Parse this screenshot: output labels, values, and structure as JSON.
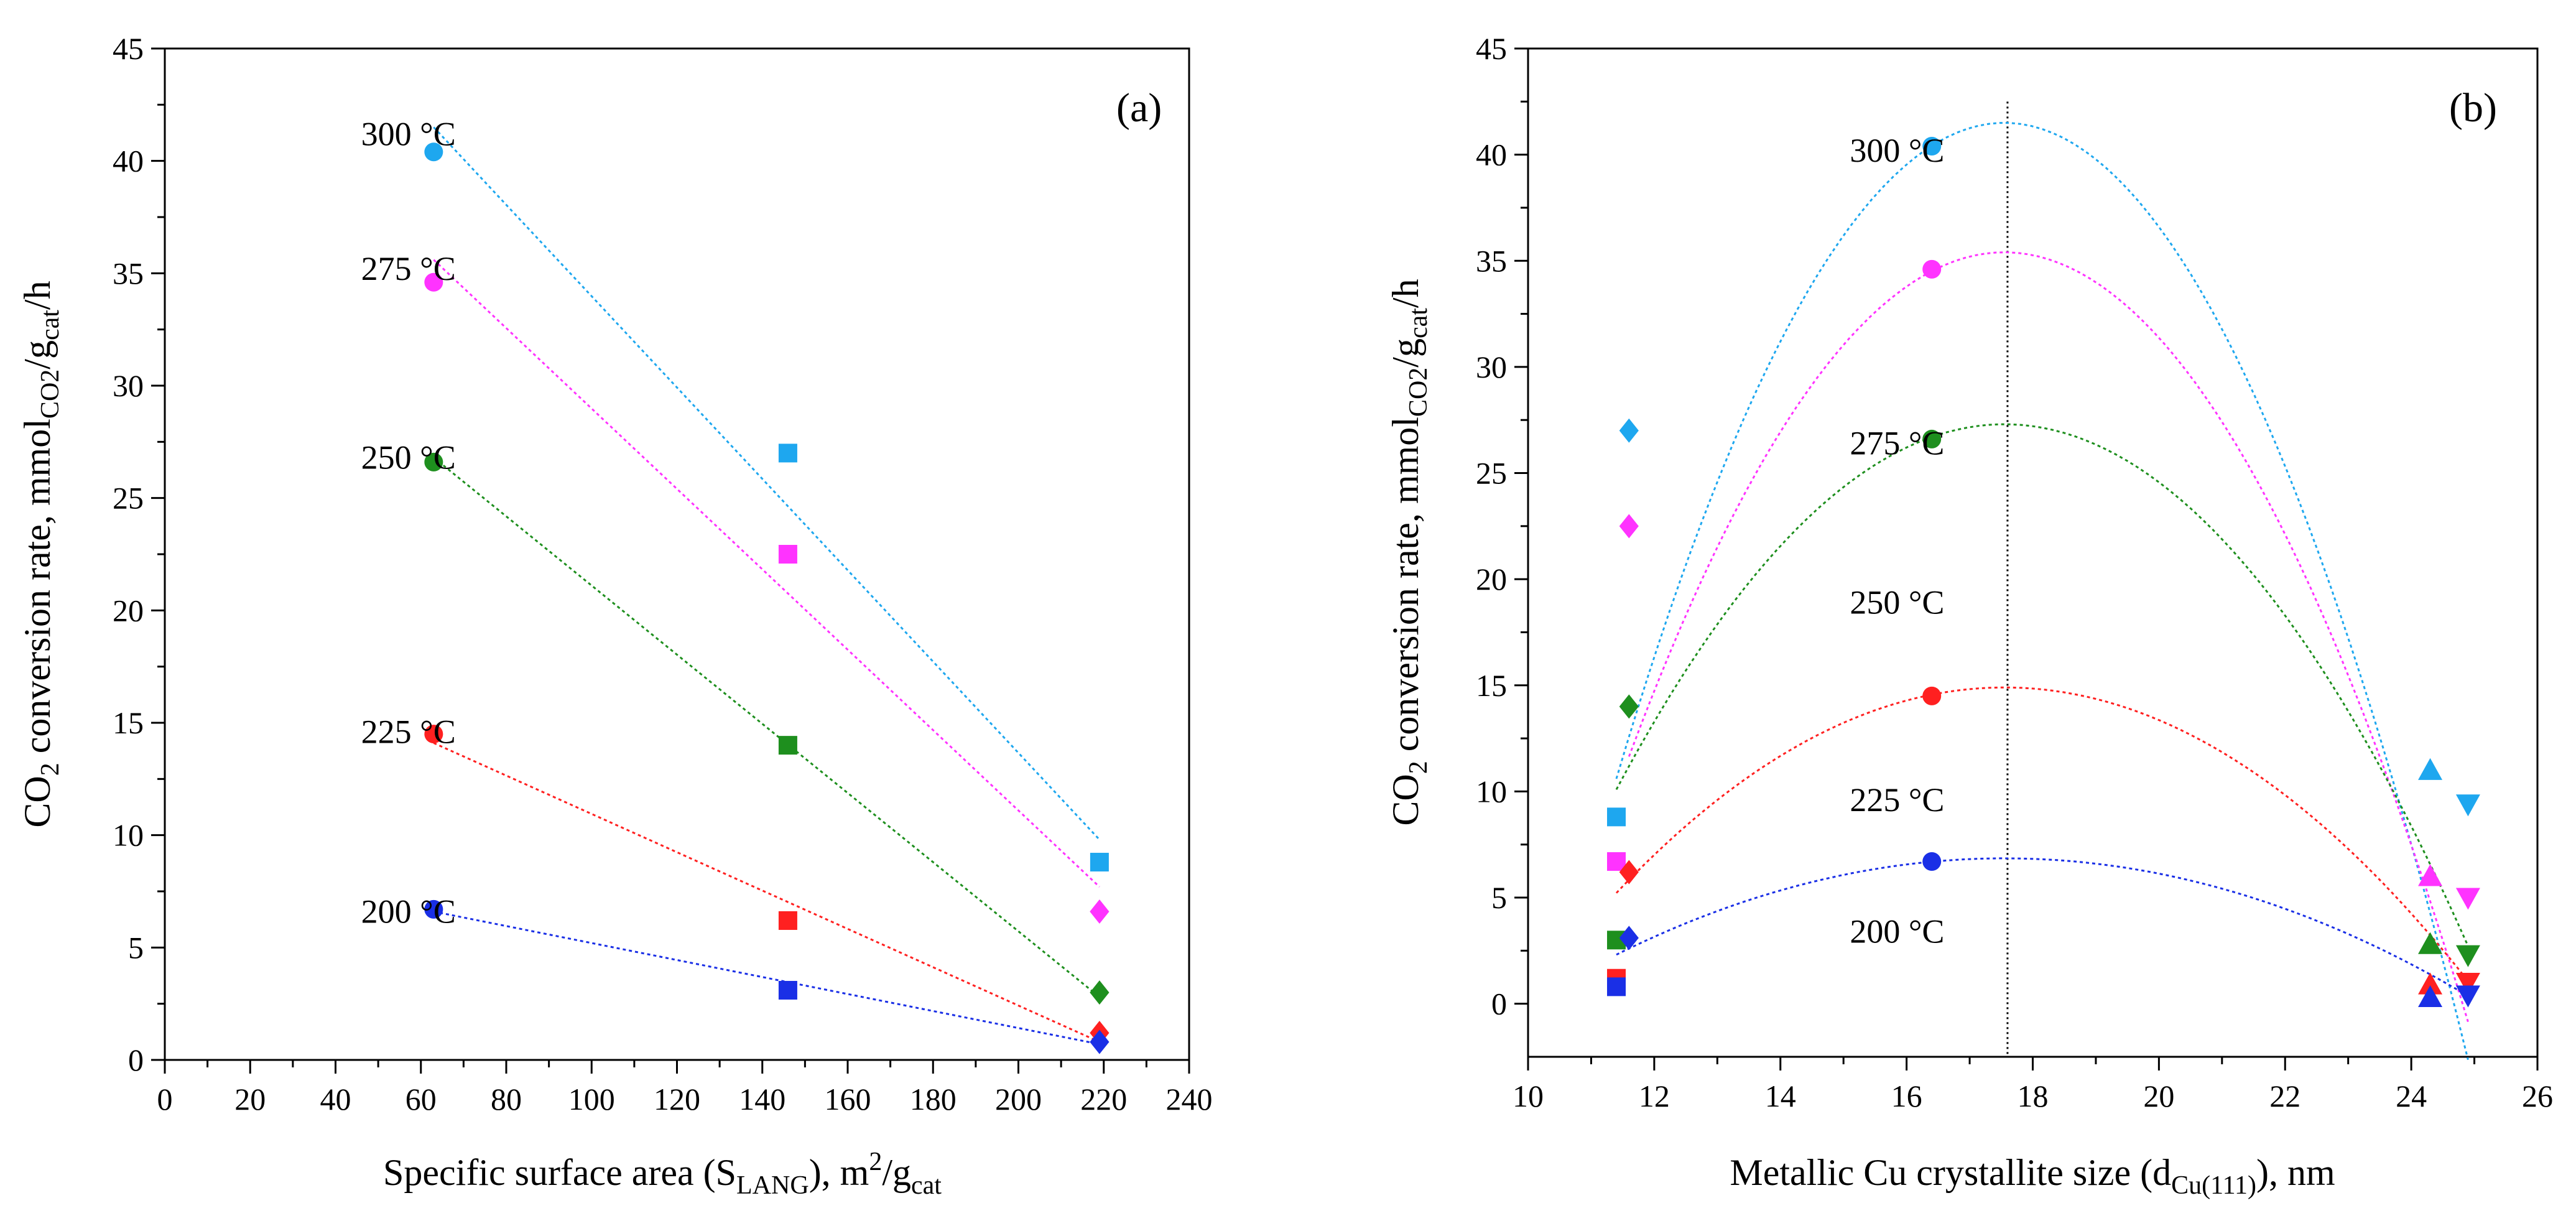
{
  "chart_data": [
    {
      "id": "a",
      "type": "scatter",
      "panel_label": "(a)",
      "xlim": [
        0,
        240
      ],
      "ylim": [
        0,
        45
      ],
      "xticks": [
        0,
        20,
        40,
        60,
        80,
        100,
        120,
        140,
        160,
        180,
        200,
        220,
        240
      ],
      "yticks": [
        0,
        5,
        10,
        15,
        20,
        25,
        30,
        35,
        40,
        45
      ],
      "xlabel": {
        "main": "Specific surface area (S",
        "sub": "LANG",
        "mid": "), m",
        "sup": "2",
        "slash": "/g",
        "sub2": "cat"
      },
      "ylabel": {
        "p1": "CO",
        "s1": "2",
        "p2": " conversion rate, mmol",
        "s2": "CO2",
        "p3": "/g",
        "s3": "cat",
        "p4": "/h"
      },
      "series": [
        {
          "name": "300 °C",
          "color": "#1ea7ef",
          "label": "300 °C",
          "label_at": [
            46,
            41.2
          ],
          "points": [
            [
              63,
              40.4,
              "circle"
            ],
            [
              146,
              27.0,
              "square"
            ],
            [
              219,
              8.8,
              "square"
            ]
          ],
          "fit": {
            "kind": "line",
            "points": [
              [
                63,
                41.5
              ],
              [
                219,
                9.8
              ]
            ]
          }
        },
        {
          "name": "275 °C",
          "color": "#ff33ff",
          "label": "275 °C",
          "label_at": [
            46,
            35.2
          ],
          "points": [
            [
              63,
              34.6,
              "circle"
            ],
            [
              146,
              22.5,
              "square"
            ],
            [
              219,
              6.6,
              "diamond"
            ]
          ],
          "fit": {
            "kind": "line",
            "points": [
              [
                63,
                35.6
              ],
              [
                219,
                7.7
              ]
            ]
          }
        },
        {
          "name": "250 °C",
          "color": "#1e8f1e",
          "label": "250 °C",
          "label_at": [
            46,
            26.8
          ],
          "points": [
            [
              63,
              26.6,
              "circle"
            ],
            [
              146,
              14.0,
              "square"
            ],
            [
              219,
              3.0,
              "diamond"
            ]
          ],
          "fit": {
            "kind": "line",
            "points": [
              [
                63,
                26.8
              ],
              [
                219,
                2.8
              ]
            ]
          }
        },
        {
          "name": "225 °C",
          "color": "#ff2020",
          "label": "225 °C",
          "label_at": [
            46,
            14.6
          ],
          "points": [
            [
              63,
              14.5,
              "circle"
            ],
            [
              146,
              6.2,
              "square"
            ],
            [
              219,
              1.2,
              "diamond"
            ]
          ],
          "fit": {
            "kind": "line",
            "points": [
              [
                63,
                14.1
              ],
              [
                219,
                0.8
              ]
            ]
          }
        },
        {
          "name": "200 °C",
          "color": "#1a2fe6",
          "label": "200 °C",
          "label_at": [
            46,
            6.6
          ],
          "points": [
            [
              63,
              6.7,
              "circle"
            ],
            [
              146,
              3.1,
              "square"
            ],
            [
              219,
              0.8,
              "diamond"
            ]
          ],
          "fit": {
            "kind": "line",
            "points": [
              [
                63,
                6.6
              ],
              [
                219,
                0.7
              ]
            ]
          }
        }
      ]
    },
    {
      "id": "b",
      "type": "scatter",
      "panel_label": "(b)",
      "xlim": [
        10,
        26
      ],
      "ylim": [
        -2.5,
        45
      ],
      "xticks": [
        10,
        12,
        14,
        16,
        18,
        20,
        22,
        24,
        26
      ],
      "yticks": [
        0,
        5,
        10,
        15,
        20,
        25,
        30,
        35,
        40,
        45
      ],
      "vline_x": 17.6,
      "xlabel": {
        "main": "Metallic Cu crystallite size (d",
        "sub": "Cu(111)",
        "mid": "), nm"
      },
      "ylabel": {
        "p1": "CO",
        "s1": "2",
        "p2": " conversion rate, mmol",
        "s2": "CO2",
        "p3": "/g",
        "s3": "cat",
        "p4": "/h"
      },
      "series": [
        {
          "name": "300 °C",
          "color": "#1ea7ef",
          "label": "300 °C",
          "label_at": [
            15.1,
            40.2
          ],
          "points": [
            [
              11.4,
              8.8,
              "square"
            ],
            [
              11.6,
              27.0,
              "diamond"
            ],
            [
              16.4,
              40.4,
              "circle"
            ],
            [
              24.3,
              11.0,
              "triangle"
            ],
            [
              24.9,
              9.4,
              "triangle-down"
            ]
          ],
          "fit": {
            "kind": "quadratic",
            "vertex": [
              17.55,
              41.5
            ],
            "a": -0.817,
            "range": [
              11.4,
              24.9
            ]
          }
        },
        {
          "name": "275 °C",
          "color": "#ff33ff",
          "label": "275 °C",
          "label_at": [
            15.1,
            26.4
          ],
          "points": [
            [
              11.4,
              6.7,
              "square"
            ],
            [
              11.6,
              22.5,
              "diamond"
            ],
            [
              16.4,
              34.6,
              "circle"
            ],
            [
              24.3,
              6.0,
              "triangle"
            ],
            [
              24.9,
              5.0,
              "triangle-down"
            ]
          ],
          "fit": {
            "kind": "quadratic",
            "vertex": [
              17.55,
              35.4
            ],
            "a": -0.671,
            "range": [
              11.6,
              24.9
            ]
          }
        },
        {
          "name": "250 °C",
          "color": "#1e8f1e",
          "label": "250 °C",
          "label_at": [
            15.1,
            18.9
          ],
          "points": [
            [
              11.4,
              3.0,
              "square"
            ],
            [
              11.6,
              14.0,
              "diamond"
            ],
            [
              16.4,
              26.6,
              "circle"
            ],
            [
              24.3,
              2.8,
              "triangle"
            ],
            [
              24.9,
              2.3,
              "triangle-down"
            ]
          ],
          "fit": {
            "kind": "quadratic",
            "vertex": [
              17.55,
              27.3
            ],
            "a": -0.455,
            "range": [
              11.4,
              24.9
            ]
          }
        },
        {
          "name": "225 °C",
          "color": "#ff2020",
          "label": "225 °C",
          "label_at": [
            15.1,
            9.6
          ],
          "points": [
            [
              11.4,
              1.2,
              "square"
            ],
            [
              11.6,
              6.2,
              "diamond"
            ],
            [
              16.4,
              14.5,
              "circle"
            ],
            [
              24.3,
              0.9,
              "triangle"
            ],
            [
              24.9,
              1.0,
              "triangle-down"
            ]
          ],
          "fit": {
            "kind": "quadratic",
            "vertex": [
              17.55,
              14.9
            ],
            "a": -0.256,
            "range": [
              11.4,
              24.9
            ]
          }
        },
        {
          "name": "200 °C",
          "color": "#1a2fe6",
          "label": "200 °C",
          "label_at": [
            15.1,
            3.4
          ],
          "points": [
            [
              11.4,
              0.8,
              "square"
            ],
            [
              11.6,
              3.1,
              "diamond"
            ],
            [
              16.4,
              6.7,
              "circle"
            ],
            [
              24.3,
              0.3,
              "triangle"
            ],
            [
              24.9,
              0.4,
              "triangle-down"
            ]
          ],
          "fit": {
            "kind": "quadratic",
            "vertex": [
              17.55,
              6.85
            ],
            "a": -0.12,
            "range": [
              11.4,
              24.9
            ]
          }
        }
      ]
    }
  ]
}
